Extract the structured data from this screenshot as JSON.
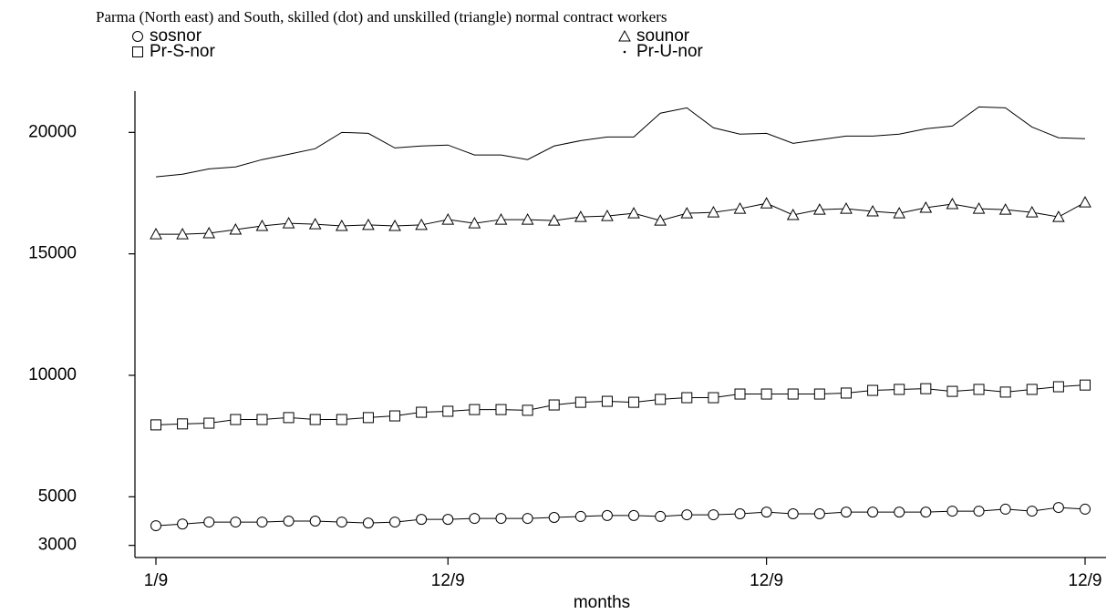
{
  "chart_data": {
    "type": "line",
    "title": "Parma (North east) and South, skilled (dot) and unskilled (triangle) normal contract workers",
    "x_label": "months",
    "categories": [
      "1/9",
      null,
      null,
      null,
      null,
      null,
      null,
      null,
      null,
      null,
      null,
      "12/9",
      null,
      null,
      null,
      null,
      null,
      null,
      null,
      null,
      null,
      null,
      null,
      "12/9",
      null,
      null,
      null,
      null,
      null,
      null,
      null,
      null,
      null,
      null,
      null,
      "12/9"
    ],
    "ylim": [
      2500,
      21700
    ],
    "yticks": [
      3000,
      5000,
      10000,
      15000,
      20000
    ],
    "series": [
      {
        "name": "sosnor",
        "color": "#000000",
        "marker": "circle",
        "values": [
          3810,
          3880,
          3960,
          3960,
          3960,
          4000,
          4000,
          3960,
          3920,
          3960,
          4070,
          4070,
          4110,
          4110,
          4110,
          4150,
          4190,
          4230,
          4230,
          4190,
          4260,
          4260,
          4300,
          4370,
          4300,
          4300,
          4370,
          4370,
          4370,
          4370,
          4410,
          4410,
          4490,
          4410,
          4560,
          4490
        ]
      },
      {
        "name": "sounor",
        "color": "#000000",
        "marker": "triangle",
        "values": [
          15810,
          15810,
          15850,
          16000,
          16150,
          16260,
          16220,
          16150,
          16190,
          16150,
          16190,
          16410,
          16260,
          16410,
          16410,
          16370,
          16520,
          16560,
          16670,
          16370,
          16670,
          16710,
          16860,
          17080,
          16600,
          16820,
          16860,
          16750,
          16670,
          16900,
          17050,
          16860,
          16820,
          16710,
          16520,
          17120
        ]
      },
      {
        "name": "Pr-S-nor",
        "color": "#000000",
        "marker": "square",
        "values": [
          7960,
          8000,
          8030,
          8180,
          8180,
          8260,
          8180,
          8180,
          8260,
          8330,
          8480,
          8520,
          8590,
          8590,
          8560,
          8780,
          8890,
          8930,
          8890,
          9010,
          9080,
          9080,
          9230,
          9230,
          9230,
          9230,
          9270,
          9380,
          9420,
          9450,
          9340,
          9420,
          9310,
          9420,
          9530,
          9600
        ]
      },
      {
        "name": "Pr-U-nor",
        "color": "#000000",
        "marker": "dot",
        "values": [
          18170,
          18280,
          18500,
          18580,
          18880,
          19100,
          19330,
          20000,
          19960,
          19360,
          19440,
          19480,
          19070,
          19070,
          18880,
          19440,
          19660,
          19810,
          19810,
          20790,
          21010,
          20190,
          19930,
          19960,
          19550,
          19700,
          19850,
          19850,
          19930,
          20150,
          20260,
          21050,
          21010,
          20220,
          19780,
          19740
        ]
      }
    ]
  }
}
